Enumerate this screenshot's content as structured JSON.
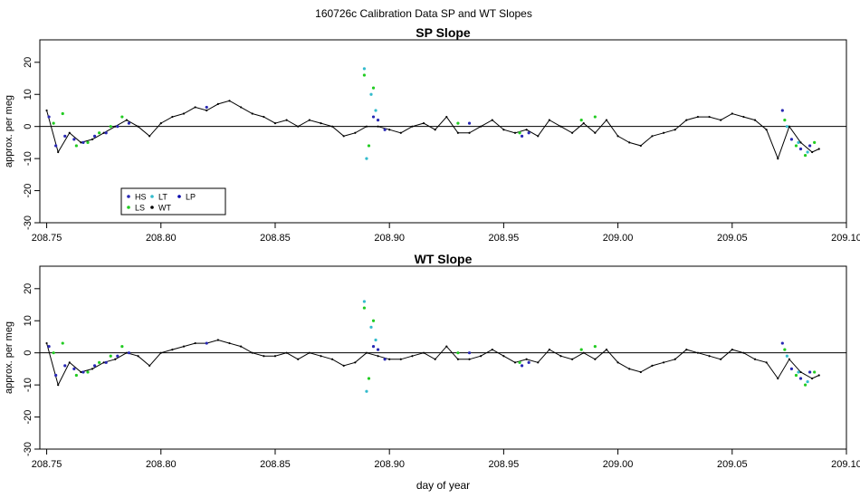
{
  "figure": {
    "main_title": "160726c   Calibration Data SP and WT Slopes"
  },
  "chart_data": [
    {
      "type": "line",
      "title": "SP Slope",
      "xlabel": "",
      "ylabel": "approx. per meg",
      "xlim": [
        208.747,
        209.1
      ],
      "ylim": [
        -30,
        27
      ],
      "xticks": [
        "208.75",
        "208.80",
        "208.85",
        "208.90",
        "208.95",
        "209.00",
        "209.05",
        "209.10"
      ],
      "yticks": [
        "20",
        "10",
        "0",
        "-10",
        "-20",
        "-30"
      ],
      "hline": 0,
      "legend": {
        "position": "bottom-left",
        "entries": [
          {
            "label": "HS",
            "color": "#2828b4"
          },
          {
            "label": "LS",
            "color": "#22cc22"
          },
          {
            "label": "LT",
            "color": "#33bbcc"
          },
          {
            "label": "WT",
            "color": "#000000"
          },
          {
            "label": "LP",
            "color": "#0000aa"
          }
        ]
      },
      "series": [
        {
          "name": "WT",
          "color": "#000000",
          "x": [
            208.75,
            208.755,
            208.76,
            208.765,
            208.77,
            208.775,
            208.78,
            208.785,
            208.79,
            208.795,
            208.8,
            208.805,
            208.81,
            208.815,
            208.82,
            208.825,
            208.83,
            208.835,
            208.84,
            208.845,
            208.85,
            208.855,
            208.86,
            208.865,
            208.87,
            208.875,
            208.88,
            208.885,
            208.89,
            208.895,
            208.9,
            208.905,
            208.91,
            208.915,
            208.92,
            208.925,
            208.93,
            208.935,
            208.94,
            208.945,
            208.95,
            208.955,
            208.96,
            208.965,
            208.97,
            208.975,
            208.98,
            208.985,
            208.99,
            208.995,
            209.0,
            209.005,
            209.01,
            209.015,
            209.02,
            209.025,
            209.03,
            209.035,
            209.04,
            209.045,
            209.05,
            209.055,
            209.06,
            209.065,
            209.07,
            209.075,
            209.08,
            209.085,
            209.088
          ],
          "y": [
            5,
            -8,
            -2,
            -5,
            -4,
            -2,
            0,
            2,
            0,
            -3,
            1,
            3,
            4,
            6,
            5,
            7,
            8,
            6,
            4,
            3,
            1,
            2,
            0,
            2,
            1,
            0,
            -3,
            -2,
            0,
            0,
            -1,
            -2,
            0,
            1,
            -1,
            3,
            -2,
            -2,
            0,
            2,
            -1,
            -2,
            -1,
            -3,
            2,
            0,
            -2,
            1,
            -2,
            2,
            -3,
            -5,
            -6,
            -3,
            -2,
            -1,
            2,
            3,
            3,
            2,
            4,
            3,
            2,
            -1,
            -10,
            0,
            -5,
            -8,
            -7
          ]
        },
        {
          "name": "HS",
          "color": "#2828b4",
          "x": [
            208.751,
            208.754,
            208.758,
            208.762,
            208.766,
            208.771,
            208.776,
            208.781,
            208.786,
            208.82,
            208.893,
            208.895,
            208.898,
            208.935,
            208.958,
            208.961,
            209.072,
            209.076,
            209.08,
            209.084
          ],
          "y": [
            3,
            -6,
            -3,
            -4,
            -5,
            -3,
            -2,
            0,
            1,
            6,
            3,
            2,
            -1,
            1,
            -3,
            -2,
            5,
            -4,
            -7,
            -6
          ]
        },
        {
          "name": "LS",
          "color": "#22cc22",
          "x": [
            208.753,
            208.757,
            208.763,
            208.768,
            208.773,
            208.778,
            208.783,
            208.889,
            208.891,
            208.893,
            208.93,
            208.957,
            208.984,
            208.99,
            209.073,
            209.078,
            209.082,
            209.086
          ],
          "y": [
            1,
            4,
            -6,
            -5,
            -2,
            0,
            3,
            16,
            -6,
            12,
            1,
            -2,
            2,
            3,
            2,
            -6,
            -9,
            -5
          ]
        },
        {
          "name": "LT",
          "color": "#33bbcc",
          "x": [
            208.889,
            208.89,
            208.892,
            208.894,
            209.074,
            209.079,
            209.083
          ],
          "y": [
            18,
            -10,
            10,
            5,
            0,
            -5,
            -8
          ]
        }
      ]
    },
    {
      "type": "line",
      "title": "WT Slope",
      "xlabel": "day of year",
      "ylabel": "approx. per meg",
      "xlim": [
        208.747,
        209.1
      ],
      "ylim": [
        -30,
        27
      ],
      "xticks": [
        "208.75",
        "208.80",
        "208.85",
        "208.90",
        "208.95",
        "209.00",
        "209.05",
        "209.10"
      ],
      "yticks": [
        "20",
        "10",
        "0",
        "-10",
        "-20",
        "-30"
      ],
      "hline": 0,
      "series": [
        {
          "name": "WT",
          "color": "#000000",
          "x": [
            208.75,
            208.755,
            208.76,
            208.765,
            208.77,
            208.775,
            208.78,
            208.785,
            208.79,
            208.795,
            208.8,
            208.805,
            208.81,
            208.815,
            208.82,
            208.825,
            208.83,
            208.835,
            208.84,
            208.845,
            208.85,
            208.855,
            208.86,
            208.865,
            208.87,
            208.875,
            208.88,
            208.885,
            208.89,
            208.895,
            208.9,
            208.905,
            208.91,
            208.915,
            208.92,
            208.925,
            208.93,
            208.935,
            208.94,
            208.945,
            208.95,
            208.955,
            208.96,
            208.965,
            208.97,
            208.975,
            208.98,
            208.985,
            208.99,
            208.995,
            209.0,
            209.005,
            209.01,
            209.015,
            209.02,
            209.025,
            209.03,
            209.035,
            209.04,
            209.045,
            209.05,
            209.055,
            209.06,
            209.065,
            209.07,
            209.075,
            209.08,
            209.085,
            209.088
          ],
          "y": [
            3,
            -10,
            -3,
            -6,
            -5,
            -3,
            -2,
            0,
            -1,
            -4,
            0,
            1,
            2,
            3,
            3,
            4,
            3,
            2,
            0,
            -1,
            -1,
            0,
            -2,
            0,
            -1,
            -2,
            -4,
            -3,
            0,
            -1,
            -2,
            -2,
            -1,
            0,
            -2,
            2,
            -2,
            -2,
            -1,
            1,
            -1,
            -3,
            -2,
            -3,
            1,
            -1,
            -2,
            0,
            -2,
            1,
            -3,
            -5,
            -6,
            -4,
            -3,
            -2,
            1,
            0,
            -1,
            -2,
            1,
            0,
            -2,
            -3,
            -8,
            -2,
            -6,
            -8,
            -7
          ]
        },
        {
          "name": "HS",
          "color": "#2828b4",
          "x": [
            208.751,
            208.754,
            208.758,
            208.762,
            208.766,
            208.771,
            208.776,
            208.781,
            208.786,
            208.82,
            208.893,
            208.895,
            208.898,
            208.935,
            208.958,
            208.961,
            209.072,
            209.076,
            209.08,
            209.084
          ],
          "y": [
            2,
            -7,
            -4,
            -5,
            -6,
            -4,
            -3,
            -1,
            0,
            3,
            2,
            1,
            -2,
            0,
            -4,
            -3,
            3,
            -5,
            -8,
            -6
          ]
        },
        {
          "name": "LS",
          "color": "#22cc22",
          "x": [
            208.753,
            208.757,
            208.763,
            208.768,
            208.773,
            208.778,
            208.783,
            208.889,
            208.891,
            208.893,
            208.93,
            208.957,
            208.984,
            208.99,
            209.073,
            209.078,
            209.082,
            209.086
          ],
          "y": [
            0,
            3,
            -7,
            -6,
            -3,
            -1,
            2,
            14,
            -8,
            10,
            0,
            -3,
            1,
            2,
            1,
            -7,
            -10,
            -6
          ]
        },
        {
          "name": "LT",
          "color": "#33bbcc",
          "x": [
            208.889,
            208.89,
            208.892,
            208.894,
            209.074,
            209.079,
            209.083
          ],
          "y": [
            16,
            -12,
            8,
            4,
            -1,
            -6,
            -9
          ]
        }
      ]
    }
  ]
}
